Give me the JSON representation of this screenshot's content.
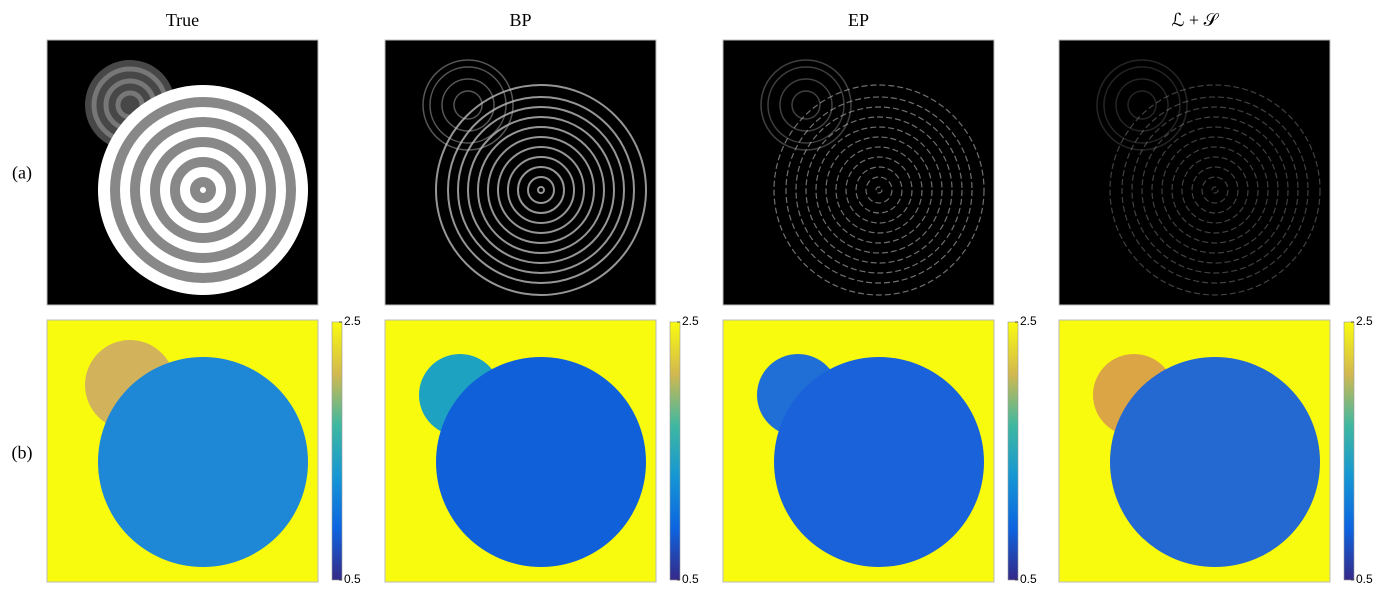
{
  "columns": [
    {
      "title": "True"
    },
    {
      "title": "BP"
    },
    {
      "title": "EP"
    },
    {
      "title": "ℒ + 𝒮"
    }
  ],
  "rows": [
    {
      "label": "(a)"
    },
    {
      "label": "(b)"
    }
  ],
  "colorbar": {
    "ticks": [
      2.5,
      0.5
    ]
  }
}
